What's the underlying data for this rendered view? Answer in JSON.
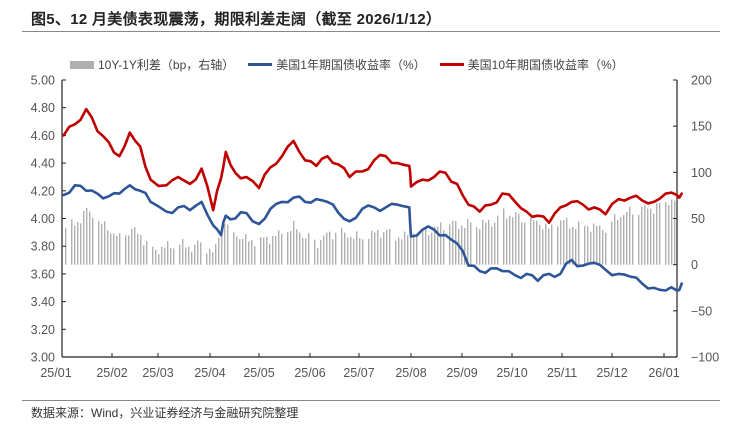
{
  "header": {
    "title": "图5、12 月美债表现震荡，期限利差走阔（截至 2026/1/12）"
  },
  "legend": {
    "items": [
      {
        "label": "10Y-1Y利差（bp，右轴）",
        "type": "bar",
        "color": "#b0b0b0"
      },
      {
        "label": "美国1年期国债收益率（%）",
        "type": "line",
        "color": "#2e5597"
      },
      {
        "label": "美国10年期国债收益率（%）",
        "type": "line",
        "color": "#c00000"
      }
    ]
  },
  "footer": {
    "source": "数据来源：Wind，兴业证券经济与金融研究院整理"
  },
  "chart_data": {
    "type": "line",
    "title": "图5、12 月美债表现震荡，期限利差走阔（截至 2026/1/12）",
    "xlabel": "",
    "ylabel": "%",
    "y2label": "bp",
    "ylim": [
      3.0,
      5.0
    ],
    "y2lim": [
      -100,
      200
    ],
    "yticks": [
      "5.00",
      "4.80",
      "4.60",
      "4.40",
      "4.20",
      "4.00",
      "3.80",
      "3.60",
      "3.40",
      "3.20",
      "3.00"
    ],
    "y2ticks": [
      "200",
      "150",
      "100",
      "50",
      "0",
      "-50",
      "-100"
    ],
    "xticks": [
      "25/01",
      "25/02",
      "25/03",
      "25/04",
      "25/05",
      "25/06",
      "25/07",
      "25/08",
      "25/09",
      "25/10",
      "25/11",
      "25/12",
      "26/01"
    ],
    "grid": false,
    "legend_position": "top",
    "x": [
      "25/01/02",
      "25/01/09",
      "25/01/16",
      "25/01/23",
      "25/01/30",
      "25/02/06",
      "25/02/13",
      "25/02/20",
      "25/02/27",
      "25/03/06",
      "25/03/13",
      "25/03/20",
      "25/03/27",
      "25/04/03",
      "25/04/08",
      "25/04/11",
      "25/04/17",
      "25/04/24",
      "25/05/01",
      "25/05/08",
      "25/05/15",
      "25/05/22",
      "25/05/29",
      "25/06/05",
      "25/06/12",
      "25/06/19",
      "25/06/26",
      "25/07/03",
      "25/07/10",
      "25/07/17",
      "25/07/24",
      "25/07/31",
      "25/08/01",
      "25/08/08",
      "25/08/15",
      "25/08/22",
      "25/08/29",
      "25/09/05",
      "25/09/12",
      "25/09/19",
      "25/09/26",
      "25/10/03",
      "25/10/10",
      "25/10/17",
      "25/10/24",
      "25/10/31",
      "25/11/07",
      "25/11/14",
      "25/11/21",
      "25/11/28",
      "25/12/05",
      "25/12/12",
      "25/12/19",
      "25/12/26",
      "26/01/02",
      "26/01/09",
      "26/01/12"
    ],
    "series": [
      {
        "name": "美国10年期国债收益率（%）",
        "axis": "left",
        "color": "#c00000",
        "values": [
          4.6,
          4.68,
          4.79,
          4.63,
          4.55,
          4.45,
          4.62,
          4.52,
          4.28,
          4.24,
          4.3,
          4.25,
          4.36,
          4.06,
          4.29,
          4.48,
          4.33,
          4.3,
          4.22,
          4.37,
          4.45,
          4.56,
          4.42,
          4.38,
          4.45,
          4.39,
          4.3,
          4.34,
          4.42,
          4.45,
          4.4,
          4.38,
          4.23,
          4.28,
          4.3,
          4.33,
          4.25,
          4.1,
          4.05,
          4.1,
          4.18,
          4.12,
          4.05,
          4.02,
          3.97,
          4.08,
          4.12,
          4.1,
          4.08,
          4.03,
          4.14,
          4.15,
          4.13,
          4.12,
          4.18,
          4.17,
          4.18
        ]
      },
      {
        "name": "美国1年期国债收益率（%）",
        "axis": "left",
        "color": "#2e5597",
        "values": [
          4.17,
          4.24,
          4.2,
          4.18,
          4.16,
          4.18,
          4.24,
          4.2,
          4.12,
          4.05,
          4.08,
          4.06,
          4.12,
          3.95,
          3.88,
          4.02,
          4.0,
          4.04,
          3.96,
          4.07,
          4.12,
          4.15,
          4.12,
          4.14,
          4.12,
          4.04,
          3.98,
          4.07,
          4.08,
          4.08,
          4.1,
          4.08,
          3.87,
          3.92,
          3.92,
          3.88,
          3.82,
          3.66,
          3.62,
          3.64,
          3.62,
          3.59,
          3.6,
          3.55,
          3.6,
          3.6,
          3.7,
          3.66,
          3.68,
          3.63,
          3.6,
          3.58,
          3.53,
          3.5,
          3.48,
          3.48,
          3.53
        ]
      },
      {
        "name": "10Y-1Y利差（bp，右轴）",
        "type": "bar",
        "axis": "right",
        "color": "#b0b0b0",
        "values": [
          43,
          44,
          59,
          45,
          39,
          27,
          38,
          32,
          16,
          19,
          22,
          19,
          24,
          11,
          41,
          46,
          33,
          26,
          26,
          30,
          33,
          41,
          30,
          24,
          33,
          35,
          32,
          27,
          34,
          37,
          30,
          30,
          36,
          36,
          38,
          45,
          43,
          44,
          43,
          46,
          56,
          53,
          45,
          47,
          37,
          48,
          42,
          44,
          40,
          40,
          54,
          57,
          60,
          62,
          70,
          69,
          65
        ]
      }
    ]
  }
}
